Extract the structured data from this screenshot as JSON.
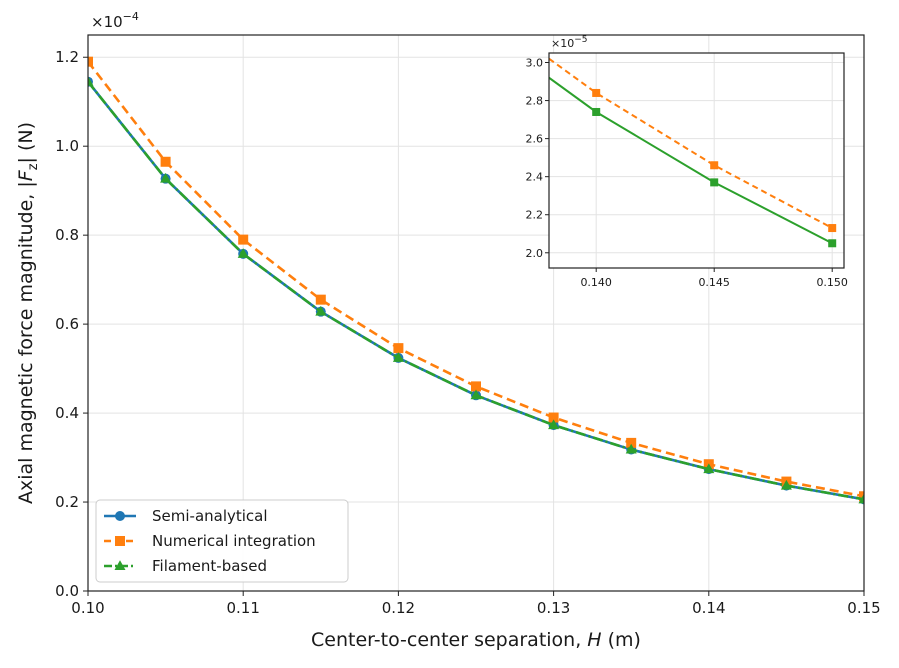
{
  "chart_data": {
    "type": "line",
    "title": "",
    "xlabel_text": "Center-to-center separation, ",
    "xlabel_sym": "H",
    "xlabel_unit": " (m)",
    "ylabel_text": "Axial magnetic force magnitude, |",
    "ylabel_sym": "F",
    "ylabel_sub": "z",
    "ylabel_unit": "| (N)",
    "y_multiplier_base": "×10",
    "y_multiplier_exp": "−4",
    "xlim": [
      0.1,
      0.15
    ],
    "ylim": [
      0.0,
      1.25
    ],
    "xticks": [
      "0.10",
      "0.11",
      "0.12",
      "0.13",
      "0.14",
      "0.15"
    ],
    "yticks": [
      "0.0",
      "0.2",
      "0.4",
      "0.6",
      "0.8",
      "1.0",
      "1.2"
    ],
    "grid": true,
    "legend_position": "lower-left",
    "x": [
      0.1,
      0.105,
      0.11,
      0.115,
      0.12,
      0.125,
      0.13,
      0.135,
      0.14,
      0.145,
      0.15
    ],
    "series": [
      {
        "name": "Semi-analytical",
        "color": "#1f77b4",
        "style": "solid",
        "marker": "circle",
        "values": [
          1.145,
          0.927,
          0.758,
          0.628,
          0.524,
          0.44,
          0.373,
          0.318,
          0.274,
          0.237,
          0.206
        ]
      },
      {
        "name": "Numerical integration",
        "color": "#ff7f0e",
        "style": "dashed",
        "marker": "square",
        "values": [
          1.19,
          0.965,
          0.79,
          0.655,
          0.546,
          0.46,
          0.39,
          0.333,
          0.285,
          0.246,
          0.213
        ]
      },
      {
        "name": "Filament-based",
        "color": "#2ca02c",
        "style": "dashdot",
        "marker": "triangle",
        "values": [
          1.145,
          0.927,
          0.758,
          0.628,
          0.524,
          0.44,
          0.373,
          0.318,
          0.274,
          0.237,
          0.206
        ]
      }
    ],
    "inset": {
      "xlim": [
        0.138,
        0.1505
      ],
      "ylim": [
        1.92,
        3.05
      ],
      "xticks": [
        "0.140",
        "0.145",
        "0.150"
      ],
      "yticks": [
        "2.0",
        "2.2",
        "2.4",
        "2.6",
        "2.8",
        "3.0"
      ],
      "y_multiplier_base": "×10",
      "y_multiplier_exp": "−5",
      "x": [
        0.138,
        0.14,
        0.145,
        0.15
      ],
      "series": [
        {
          "color": "#ff7f0e",
          "style": "dashed",
          "marker": "square",
          "values": [
            3.02,
            2.84,
            2.46,
            2.13
          ],
          "marker_from": 1
        },
        {
          "color": "#2ca02c",
          "style": "solid",
          "marker": "square",
          "values": [
            2.92,
            2.74,
            2.37,
            2.05
          ],
          "marker_from": 1
        }
      ]
    }
  }
}
